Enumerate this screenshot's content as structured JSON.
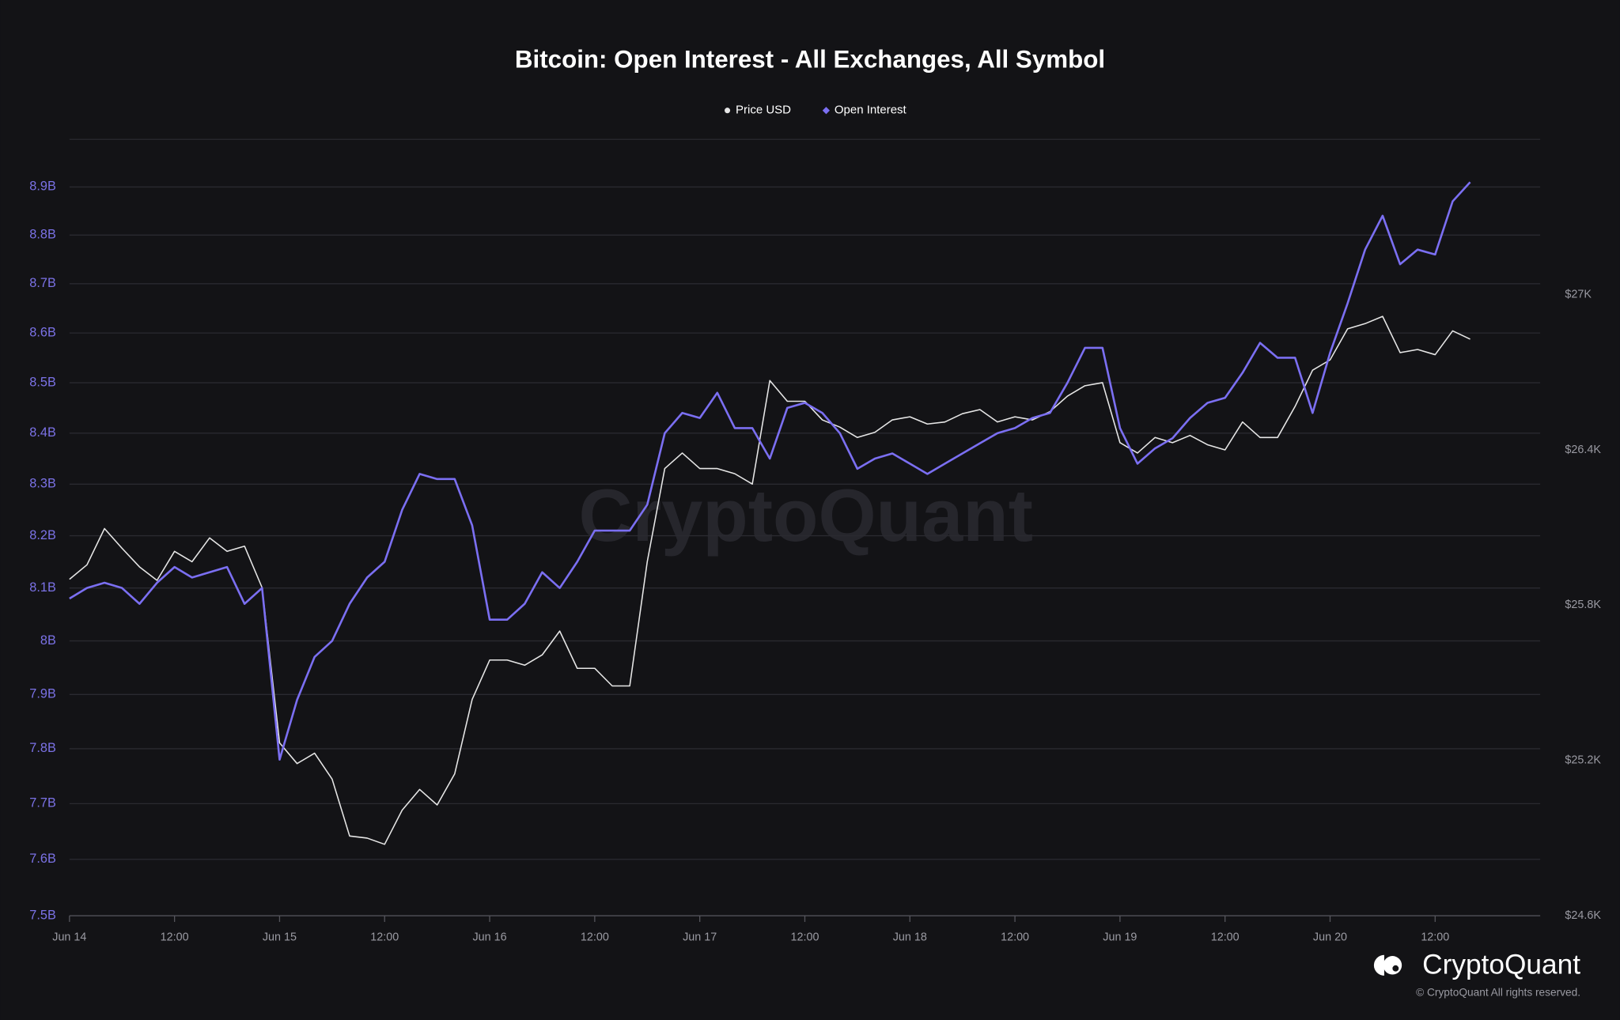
{
  "chart_data": {
    "type": "line",
    "title": "Bitcoin: Open Interest - All Exchanges, All Symbol",
    "watermark": "CryptoQuant",
    "brand": "CryptoQuant",
    "copyright": "© CryptoQuant All rights reserved.",
    "ylog": true,
    "grid": true,
    "legend": "top",
    "xlim": [
      0,
      168
    ],
    "xticks": [
      {
        "value": 0,
        "label": "Jun 14"
      },
      {
        "value": 12,
        "label": "12:00"
      },
      {
        "value": 24,
        "label": "Jun 15"
      },
      {
        "value": 36,
        "label": "12:00"
      },
      {
        "value": 48,
        "label": "Jun 16"
      },
      {
        "value": 60,
        "label": "12:00"
      },
      {
        "value": 72,
        "label": "Jun 17"
      },
      {
        "value": 84,
        "label": "12:00"
      },
      {
        "value": 96,
        "label": "Jun 18"
      },
      {
        "value": 108,
        "label": "12:00"
      },
      {
        "value": 120,
        "label": "Jun 19"
      },
      {
        "value": 132,
        "label": "12:00"
      },
      {
        "value": 144,
        "label": "Jun 20"
      },
      {
        "value": 156,
        "label": "12:00"
      }
    ],
    "ylim": [
      7500000000.0,
      9000000000.0
    ],
    "yticks": [
      {
        "value": 7500000000.0,
        "label": "7.5B"
      },
      {
        "value": 7600000000.0,
        "label": "7.6B"
      },
      {
        "value": 7700000000.0,
        "label": "7.7B"
      },
      {
        "value": 7800000000.0,
        "label": "7.8B"
      },
      {
        "value": 7900000000.0,
        "label": "7.9B"
      },
      {
        "value": 8000000000.0,
        "label": "8B"
      },
      {
        "value": 8100000000.0,
        "label": "8.1B"
      },
      {
        "value": 8200000000.0,
        "label": "8.2B"
      },
      {
        "value": 8300000000.0,
        "label": "8.3B"
      },
      {
        "value": 8400000000.0,
        "label": "8.4B"
      },
      {
        "value": 8500000000.0,
        "label": "8.5B"
      },
      {
        "value": 8600000000.0,
        "label": "8.6B"
      },
      {
        "value": 8700000000.0,
        "label": "8.7B"
      },
      {
        "value": 8800000000.0,
        "label": "8.8B"
      },
      {
        "value": 8900000000.0,
        "label": "8.9B"
      }
    ],
    "y2lim": [
      24600,
      27600
    ],
    "y2ticks": [
      {
        "value": 24600,
        "label": "$24.6K"
      },
      {
        "value": 25200,
        "label": "$25.2K"
      },
      {
        "value": 25800,
        "label": "$25.8K"
      },
      {
        "value": 26400,
        "label": "$26.4K"
      },
      {
        "value": 27000,
        "label": "$27K"
      }
    ],
    "x": [
      0,
      2,
      4,
      6,
      8,
      10,
      12,
      14,
      16,
      18,
      20,
      22,
      24,
      26,
      28,
      30,
      32,
      34,
      36,
      38,
      40,
      42,
      44,
      46,
      48,
      50,
      52,
      54,
      56,
      58,
      60,
      62,
      64,
      66,
      68,
      70,
      72,
      74,
      76,
      78,
      80,
      82,
      84,
      86,
      88,
      90,
      92,
      94,
      96,
      98,
      100,
      102,
      104,
      106,
      108,
      110,
      112,
      114,
      116,
      118,
      120,
      122,
      124,
      126,
      128,
      130,
      132,
      134,
      136,
      138,
      140,
      142,
      144,
      146,
      148,
      150,
      152,
      154,
      156,
      158,
      160
    ],
    "series": [
      {
        "name": "Price USD",
        "color": "#e6e6e6",
        "marker": "circle",
        "axis": "y2",
        "values": [
          25900,
          25956,
          26096,
          26020,
          25948,
          25896,
          26008,
          25968,
          26060,
          26008,
          26028,
          25868,
          25268,
          25188,
          25228,
          25128,
          24908,
          24900,
          24876,
          25008,
          25088,
          25028,
          25148,
          25436,
          25588,
          25588,
          25568,
          25608,
          25700,
          25556,
          25556,
          25488,
          25488,
          25968,
          26328,
          26388,
          26328,
          26328,
          26308,
          26268,
          26668,
          26588,
          26588,
          26516,
          26488,
          26448,
          26468,
          26516,
          26528,
          26500,
          26508,
          26540,
          26556,
          26508,
          26528,
          26516,
          26548,
          26608,
          26648,
          26660,
          26428,
          26388,
          26448,
          26428,
          26456,
          26420,
          26400,
          26508,
          26448,
          26448,
          26568,
          26708,
          26748,
          26868,
          26888,
          26916,
          26776,
          26788,
          26768,
          26860,
          26828
        ]
      },
      {
        "name": "Open Interest",
        "color": "#7b6ff2",
        "marker": "diamond",
        "axis": "y",
        "values": [
          8080000000.0,
          8100000000.0,
          8110000000.0,
          8100000000.0,
          8070000000.0,
          8110000000.0,
          8140000000.0,
          8120000000.0,
          8130000000.0,
          8140000000.0,
          8070000000.0,
          8100000000.0,
          7780000000.0,
          7890000000.0,
          7970000000.0,
          8000000000.0,
          8070000000.0,
          8120000000.0,
          8150000000.0,
          8250000000.0,
          8320000000.0,
          8310000000.0,
          8310000000.0,
          8220000000.0,
          8040000000.0,
          8040000000.0,
          8070000000.0,
          8130000000.0,
          8100000000.0,
          8150000000.0,
          8210000000.0,
          8210000000.0,
          8210000000.0,
          8260000000.0,
          8400000000.0,
          8440000000.0,
          8430000000.0,
          8480000000.0,
          8410000000.0,
          8410000000.0,
          8350000000.0,
          8450000000.0,
          8460000000.0,
          8440000000.0,
          8400000000.0,
          8330000000.0,
          8350000000.0,
          8360000000.0,
          8340000000.0,
          8320000000.0,
          8340000000.0,
          8360000000.0,
          8380000000.0,
          8400000000.0,
          8410000000.0,
          8430000000.0,
          8440000000.0,
          8500000000.0,
          8570000000.0,
          8570000000.0,
          8410000000.0,
          8340000000.0,
          8370000000.0,
          8390000000.0,
          8430000000.0,
          8460000000.0,
          8470000000.0,
          8520000000.0,
          8580000000.0,
          8550000000.0,
          8550000000.0,
          8440000000.0,
          8560000000.0,
          8660000000.0,
          8770000000.0,
          8840000000.0,
          8740000000.0,
          8770000000.0,
          8760000000.0,
          8870000000.0,
          8910000000.0
        ]
      }
    ]
  }
}
